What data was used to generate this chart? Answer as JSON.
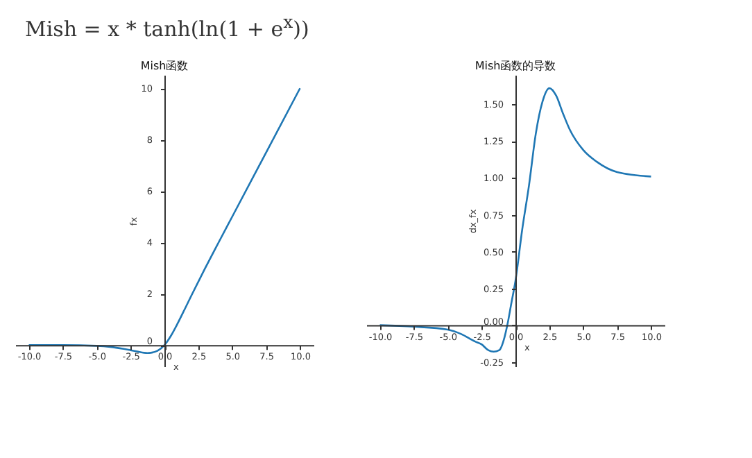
{
  "chart_data": [
    {
      "type": "other",
      "title": "Mish = x * tanh(ln(1 + e$^{x}$))"
    },
    {
      "type": "line",
      "title": "Mish函数",
      "xlabel": "x",
      "ylabel": "fx",
      "xlim": [
        -11,
        11
      ],
      "ylim": [
        -0.83,
        10.52
      ],
      "xticks": [
        {
          "value": -10,
          "label": "-10.0"
        },
        {
          "value": -7.5,
          "label": "-7.5"
        },
        {
          "value": -5,
          "label": "-5.0"
        },
        {
          "value": -2.5,
          "label": "-2.5"
        },
        {
          "value": 0,
          "label": "0.0"
        },
        {
          "value": 2.5,
          "label": "2.5"
        },
        {
          "value": 5,
          "label": "5.0"
        },
        {
          "value": 7.5,
          "label": "7.5"
        },
        {
          "value": 10,
          "label": "10.0"
        }
      ],
      "yticks": [
        0,
        2,
        4,
        6,
        8,
        10
      ],
      "x": [
        -10,
        -7.5,
        -5,
        -4,
        -3,
        -2.5,
        -2,
        -1.5,
        -1.25,
        -1,
        -0.5,
        0,
        0.5,
        1,
        1.5,
        2,
        3,
        4,
        5,
        10
      ],
      "series": [
        {
          "color": "#1f77b4",
          "values": [
            0,
            0,
            -0.03,
            -0.07,
            -0.15,
            -0.2,
            -0.25,
            -0.3,
            -0.31,
            -0.3,
            -0.22,
            0,
            0.38,
            0.87,
            1.4,
            1.94,
            2.99,
            4.0,
            5.0,
            10.0
          ]
        }
      ]
    },
    {
      "type": "line",
      "title": "Mish函数的导数",
      "xlabel": "x",
      "ylabel": "dx_fx",
      "xlim": [
        -11,
        11
      ],
      "ylim": [
        -0.28,
        1.7
      ],
      "xticks": [
        {
          "value": -10,
          "label": "-10.0"
        },
        {
          "value": -7.5,
          "label": "-7.5"
        },
        {
          "value": -5,
          "label": "-5.0"
        },
        {
          "value": -2.5,
          "label": "-2.5"
        },
        {
          "value": 0,
          "label": "0.0"
        },
        {
          "value": 2.5,
          "label": "2.5"
        },
        {
          "value": 5,
          "label": "5.0"
        },
        {
          "value": 7.5,
          "label": "7.5"
        },
        {
          "value": 10,
          "label": "10.0"
        }
      ],
      "yticks": [
        {
          "value": -0.25,
          "label": "-0.25"
        },
        {
          "value": 0,
          "label": "0.00"
        },
        {
          "value": 0.25,
          "label": "0.25"
        },
        {
          "value": 0.5,
          "label": "0.50"
        },
        {
          "value": 0.75,
          "label": "0.75"
        },
        {
          "value": 1,
          "label": "1.00"
        },
        {
          "value": 1.25,
          "label": "1.25"
        },
        {
          "value": 1.5,
          "label": "1.50"
        }
      ],
      "x": [
        -10,
        -7.5,
        -5,
        -4,
        -3,
        -2.5,
        -2,
        -1.6,
        -1.2,
        -0.8,
        -0.6,
        -0.3,
        0,
        0.5,
        1,
        1.5,
        2,
        2.5,
        3,
        3.5,
        4,
        5,
        6,
        7.5,
        10
      ],
      "series": [
        {
          "color": "#1f77b4",
          "values": [
            0,
            -0.01,
            -0.03,
            -0.06,
            -0.11,
            -0.13,
            -0.17,
            -0.18,
            -0.17,
            -0.08,
            0,
            0.15,
            0.3,
            0.65,
            0.95,
            1.3,
            1.52,
            1.61,
            1.56,
            1.44,
            1.33,
            1.19,
            1.11,
            1.04,
            1.01
          ]
        }
      ]
    }
  ]
}
